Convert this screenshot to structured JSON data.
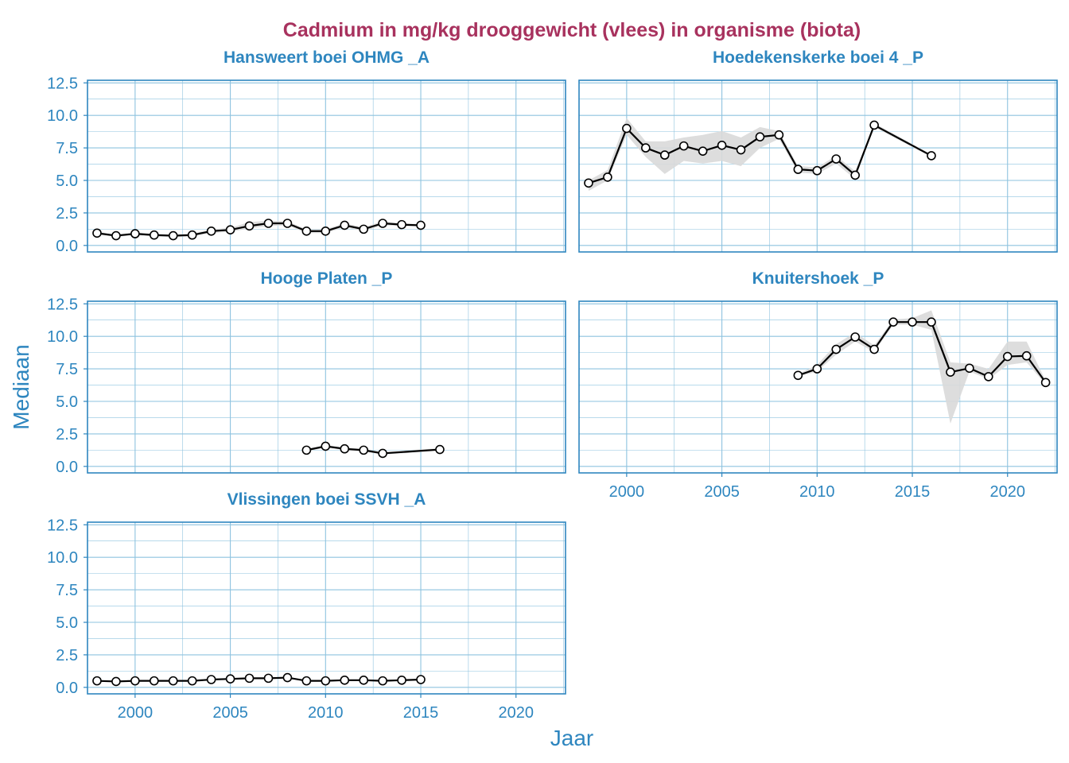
{
  "colors": {
    "title": "#A8325E",
    "axis": "#2E86BF",
    "grid": "#8EC3DF",
    "line": "#000000",
    "ribbon": "#D9D9D9"
  },
  "chart_data": {
    "type": "line",
    "title": "Cadmium in mg/kg drooggewicht (vlees) in organisme (biota)",
    "xlabel": "Jaar",
    "ylabel": "Mediaan",
    "xlim": [
      1997.5,
      2022.6
    ],
    "ylim": [
      -0.5,
      12.7
    ],
    "x_ticks": [
      2000,
      2005,
      2010,
      2015,
      2020
    ],
    "y_ticks": [
      0.0,
      2.5,
      5.0,
      7.5,
      10.0,
      12.5
    ],
    "x_tick_labels": [
      "2000",
      "2005",
      "2010",
      "2015",
      "2020"
    ],
    "y_tick_labels": [
      "0.0",
      "2.5",
      "5.0",
      "7.5",
      "10.0",
      "12.5"
    ],
    "grid": true,
    "panels": [
      {
        "name": "Hansweert boei OHMG _A",
        "x": [
          1998,
          1999,
          2000,
          2001,
          2002,
          2003,
          2004,
          2005,
          2006,
          2007,
          2008,
          2009,
          2010,
          2011,
          2012,
          2013,
          2014,
          2015
        ],
        "y": [
          0.95,
          0.75,
          0.9,
          0.8,
          0.75,
          0.8,
          1.1,
          1.2,
          1.5,
          1.7,
          1.7,
          1.1,
          1.1,
          1.55,
          1.25,
          1.7,
          1.6,
          1.55
        ],
        "lower": [
          0.85,
          0.65,
          0.8,
          0.7,
          0.65,
          0.7,
          0.95,
          1.05,
          1.3,
          1.5,
          1.55,
          0.95,
          0.95,
          1.4,
          1.1,
          1.55,
          1.5,
          1.45
        ],
        "upper": [
          1.05,
          0.85,
          1.0,
          0.9,
          0.85,
          0.9,
          1.25,
          1.35,
          1.8,
          1.9,
          1.85,
          1.25,
          1.25,
          1.7,
          1.4,
          1.85,
          1.7,
          1.65
        ]
      },
      {
        "name": "Hoedekenskerke boei 4 _P",
        "x": [
          1998,
          1999,
          2000,
          2001,
          2002,
          2003,
          2004,
          2005,
          2006,
          2007,
          2008,
          2009,
          2010,
          2011,
          2012,
          2013,
          2016
        ],
        "y": [
          4.8,
          5.25,
          9.0,
          7.5,
          6.95,
          7.65,
          7.25,
          7.7,
          7.35,
          8.35,
          8.5,
          5.85,
          5.75,
          6.65,
          5.4,
          9.25,
          6.9
        ],
        "lower": [
          4.2,
          5.0,
          8.5,
          6.8,
          5.5,
          6.5,
          6.3,
          6.5,
          6.1,
          7.5,
          8.2,
          5.6,
          5.5,
          6.3,
          5.1,
          9.1,
          6.8
        ],
        "upper": [
          5.0,
          5.8,
          9.8,
          8.0,
          8.0,
          8.3,
          8.5,
          8.8,
          8.3,
          9.1,
          8.8,
          6.1,
          6.0,
          6.9,
          5.7,
          9.4,
          7.0
        ]
      },
      {
        "name": "Hooge Platen _P",
        "x": [
          2009,
          2010,
          2011,
          2012,
          2013,
          2016
        ],
        "y": [
          1.25,
          1.55,
          1.35,
          1.25,
          1.0,
          1.3
        ],
        "lower": [
          1.15,
          1.45,
          1.25,
          1.15,
          0.9,
          1.2
        ],
        "upper": [
          1.35,
          1.65,
          1.45,
          1.35,
          1.1,
          1.4
        ]
      },
      {
        "name": "Knuitershoek _P",
        "x": [
          2009,
          2010,
          2011,
          2012,
          2013,
          2014,
          2015,
          2016,
          2017,
          2018,
          2019,
          2020,
          2021,
          2022
        ],
        "y": [
          7.0,
          7.5,
          9.0,
          9.95,
          9.0,
          11.1,
          11.1,
          11.1,
          7.25,
          7.55,
          6.9,
          8.45,
          8.5,
          6.45
        ],
        "lower": [
          6.9,
          7.3,
          8.6,
          9.6,
          8.8,
          10.9,
          10.9,
          10.5,
          3.3,
          7.3,
          6.7,
          7.8,
          8.0,
          6.3
        ],
        "upper": [
          7.1,
          7.8,
          9.4,
          10.3,
          9.3,
          11.3,
          11.4,
          12.0,
          8.0,
          7.9,
          7.5,
          9.6,
          9.6,
          6.6
        ]
      },
      {
        "name": "Vlissingen boei SSVH _A",
        "x": [
          1998,
          1999,
          2000,
          2001,
          2002,
          2003,
          2004,
          2005,
          2006,
          2007,
          2008,
          2009,
          2010,
          2011,
          2012,
          2013,
          2014,
          2015
        ],
        "y": [
          0.5,
          0.45,
          0.5,
          0.5,
          0.5,
          0.5,
          0.6,
          0.65,
          0.7,
          0.7,
          0.75,
          0.5,
          0.5,
          0.55,
          0.55,
          0.5,
          0.55,
          0.6
        ],
        "lower": [
          0.45,
          0.4,
          0.45,
          0.45,
          0.45,
          0.45,
          0.55,
          0.6,
          0.65,
          0.65,
          0.7,
          0.45,
          0.45,
          0.5,
          0.5,
          0.45,
          0.5,
          0.55
        ],
        "upper": [
          0.55,
          0.5,
          0.55,
          0.55,
          0.55,
          0.55,
          0.65,
          0.7,
          0.75,
          0.75,
          0.8,
          0.55,
          0.55,
          0.6,
          0.6,
          0.55,
          0.6,
          0.65
        ]
      }
    ]
  }
}
